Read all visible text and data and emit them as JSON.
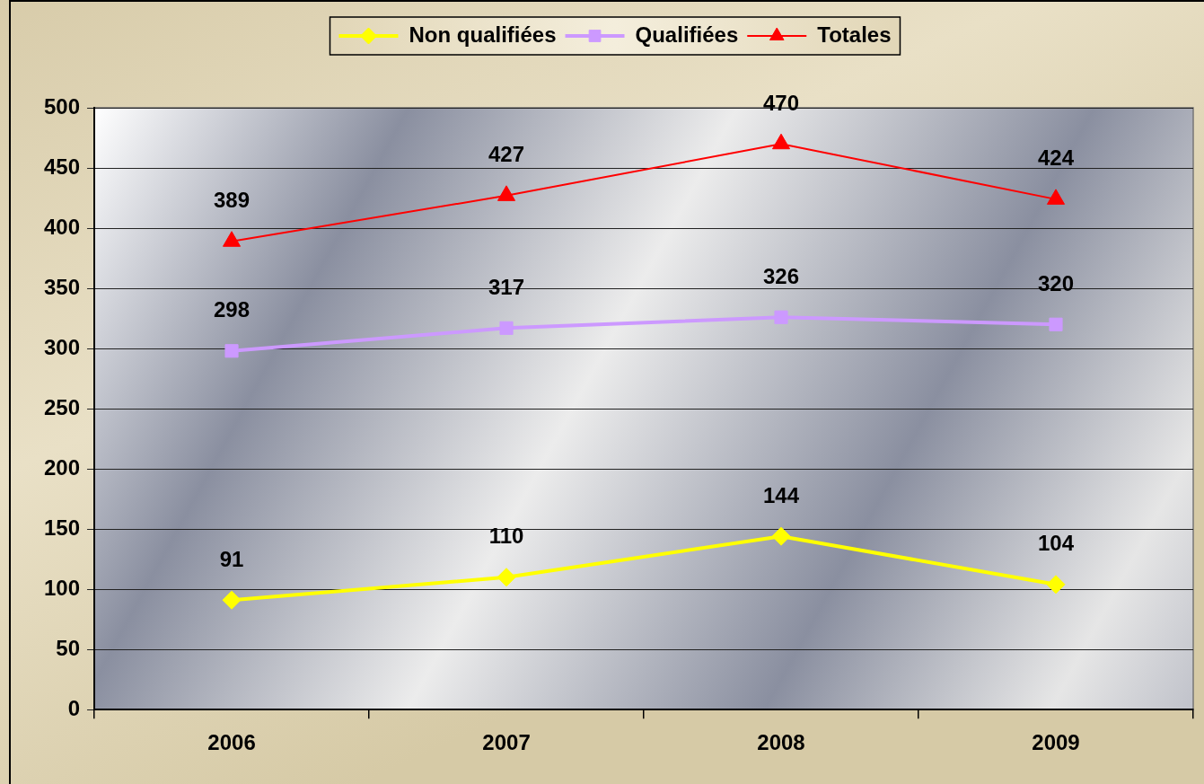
{
  "chart_data": {
    "type": "line",
    "categories": [
      "2006",
      "2007",
      "2008",
      "2009"
    ],
    "series": [
      {
        "name": "Non qualifiées",
        "color": "#ffff00",
        "marker": "diamond",
        "values": [
          91,
          110,
          144,
          104
        ]
      },
      {
        "name": "Qualifiées",
        "color": "#cc99ff",
        "marker": "square",
        "values": [
          298,
          317,
          326,
          320
        ]
      },
      {
        "name": "Totales",
        "color": "#ff0000",
        "marker": "triangle",
        "values": [
          389,
          427,
          470,
          424
        ]
      }
    ],
    "ylim": [
      0,
      500
    ],
    "yticks": [
      0,
      50,
      100,
      150,
      200,
      250,
      300,
      350,
      400,
      450,
      500
    ],
    "grid": "y",
    "legend": "top",
    "data_labels": true
  }
}
